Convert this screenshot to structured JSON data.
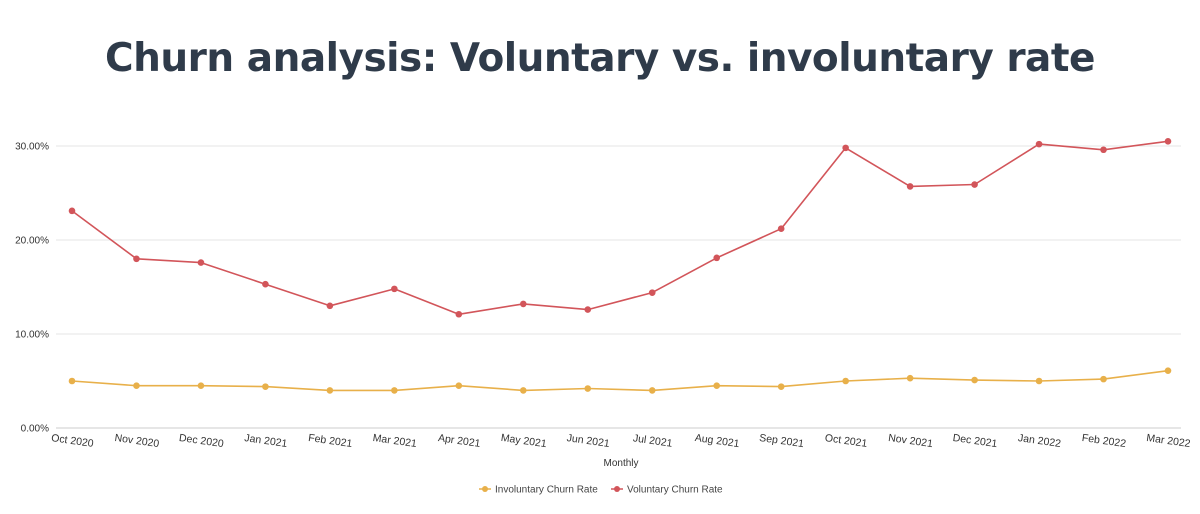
{
  "chart_data": {
    "type": "line",
    "title": "Churn analysis: Voluntary vs. involuntary rate",
    "xlabel": "Monthly",
    "ylabel": "",
    "ylim": [
      0,
      30
    ],
    "yticks": [
      0,
      10,
      20,
      30
    ],
    "ytick_labels": [
      "0.00%",
      "10.00%",
      "20.00%",
      "30.00%"
    ],
    "grid": true,
    "legend_position": "bottom-center",
    "categories": [
      "Oct 2020",
      "Nov 2020",
      "Dec 2020",
      "Jan 2021",
      "Feb 2021",
      "Mar 2021",
      "Apr 2021",
      "May 2021",
      "Jun 2021",
      "Jul 2021",
      "Aug 2021",
      "Sep 2021",
      "Oct 2021",
      "Nov 2021",
      "Dec 2021",
      "Jan 2022",
      "Feb 2022",
      "Mar 2022"
    ],
    "series": [
      {
        "name": "Involuntary Churn Rate",
        "color": "#e8b04a",
        "values": [
          5.0,
          4.5,
          4.5,
          4.4,
          4.0,
          4.0,
          4.5,
          4.0,
          4.2,
          4.0,
          4.5,
          4.4,
          5.0,
          5.3,
          5.1,
          5.0,
          5.2,
          6.1
        ]
      },
      {
        "name": "Voluntary Churn Rate",
        "color": "#d2555a",
        "values": [
          23.1,
          18.0,
          17.6,
          15.3,
          13.0,
          14.8,
          12.1,
          13.2,
          12.6,
          14.4,
          18.1,
          21.2,
          29.8,
          25.7,
          25.9,
          30.2,
          29.6,
          30.5
        ]
      }
    ]
  }
}
